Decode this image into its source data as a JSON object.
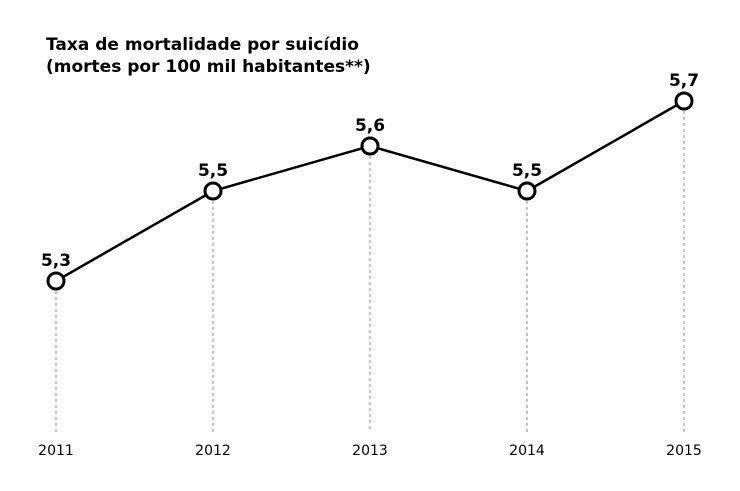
{
  "chart_data": {
    "type": "line",
    "title_lines": [
      "Taxa de mortalidade por suicídio",
      "(mortes por 100 mil habitantes**)"
    ],
    "categories": [
      "2011",
      "2012",
      "2013",
      "2014",
      "2015"
    ],
    "values": [
      5.3,
      5.5,
      5.6,
      5.5,
      5.7
    ],
    "value_labels": [
      "5,3",
      "5,5",
      "5,6",
      "5,5",
      "5,7"
    ],
    "xlabel": "",
    "ylabel": "",
    "grid": false,
    "legend": "none",
    "colors": {
      "line": "#000000",
      "marker_fill": "#ffffff",
      "drop_line": "#8c8c8c"
    }
  }
}
